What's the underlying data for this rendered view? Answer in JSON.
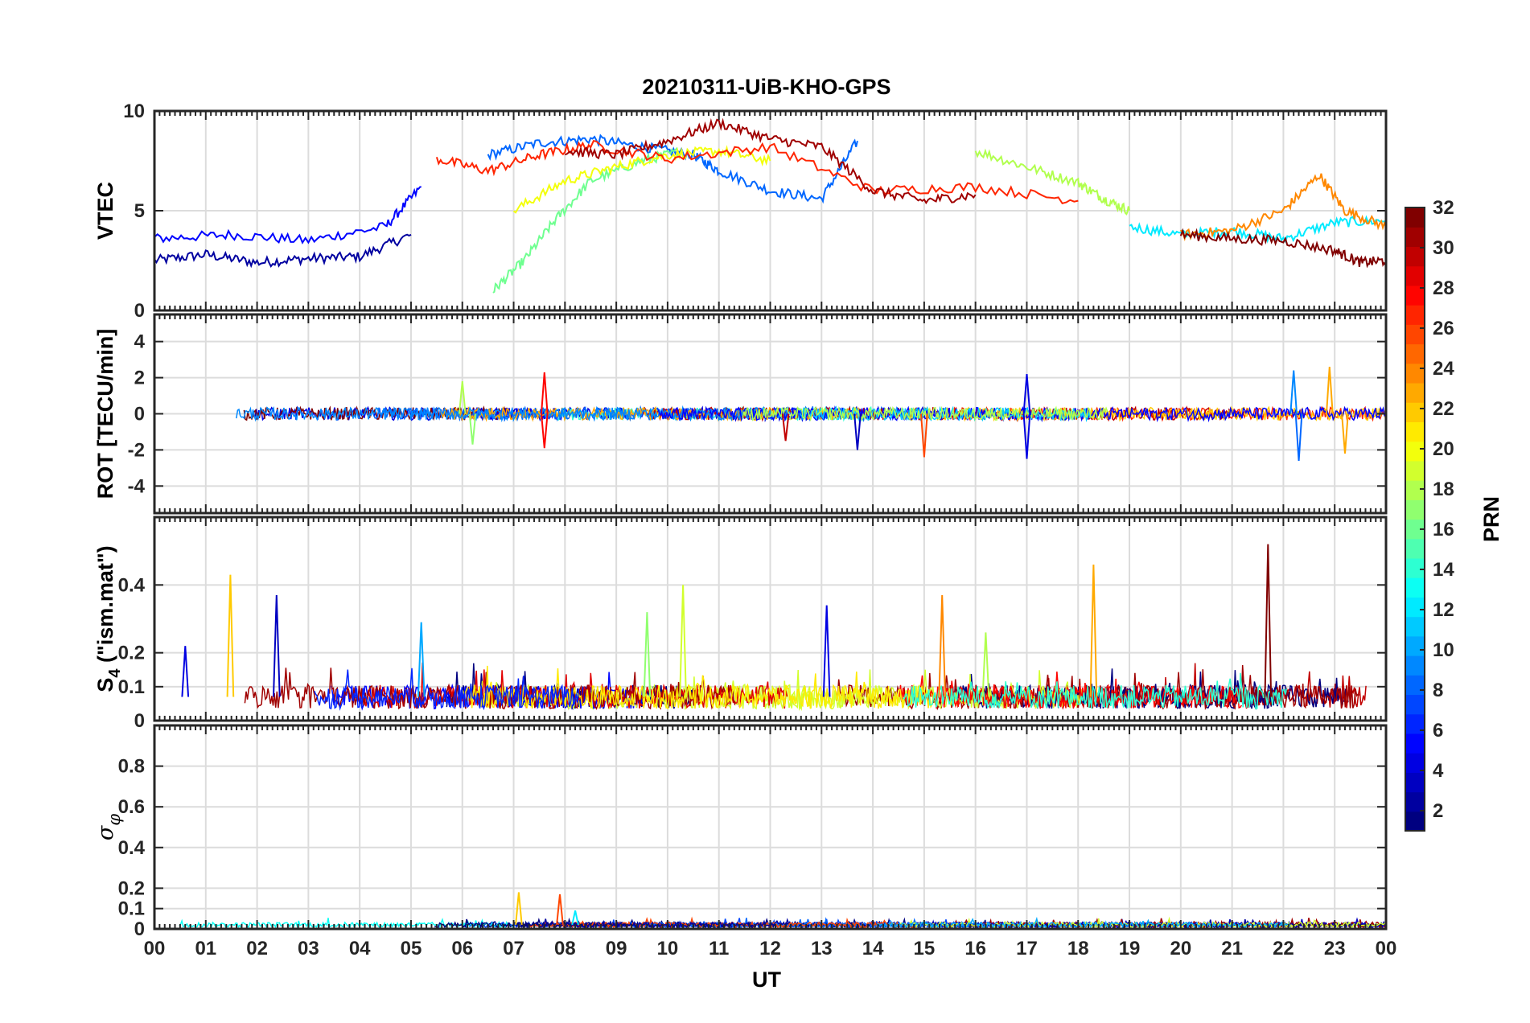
{
  "chart_data": {
    "type": "line",
    "title": "20210311-UiB-KHO-GPS",
    "xlabel": "UT",
    "x_ticks": [
      "00",
      "01",
      "02",
      "03",
      "04",
      "05",
      "06",
      "07",
      "08",
      "09",
      "10",
      "11",
      "12",
      "13",
      "14",
      "15",
      "16",
      "17",
      "18",
      "19",
      "20",
      "21",
      "22",
      "23",
      "00"
    ],
    "xlim": [
      0,
      24
    ],
    "grid": true,
    "panels": [
      {
        "ylabel": "VTEC",
        "ylim": [
          0,
          10
        ],
        "yticks": [
          "0",
          "5",
          "10"
        ],
        "ytick_values": [
          0,
          5,
          10
        ],
        "series_by_prn": [
          {
            "prn": 2,
            "x": [
              0.0,
              1.0,
              2.0,
              3.0,
              4.0,
              5.0
            ],
            "y": [
              2.5,
              2.8,
              2.4,
              2.6,
              2.7,
              3.8
            ]
          },
          {
            "prn": 5,
            "x": [
              0.0,
              1.5,
              3.0,
              4.5,
              5.2
            ],
            "y": [
              3.6,
              3.8,
              3.5,
              4.2,
              6.2
            ]
          },
          {
            "prn": 8,
            "x": [
              6.5,
              7.5,
              8.5,
              9.5,
              10.5,
              11.0,
              12.0,
              13.0,
              13.7
            ],
            "y": [
              7.8,
              8.4,
              8.6,
              8.2,
              7.8,
              7.0,
              6.0,
              5.6,
              8.5
            ]
          },
          {
            "prn": 12,
            "x": [
              19.0,
              20.0,
              21.0,
              22.0,
              23.0,
              24.0
            ],
            "y": [
              4.2,
              3.8,
              4.0,
              3.6,
              4.4,
              4.5
            ]
          },
          {
            "prn": 16,
            "x": [
              6.6,
              7.2,
              7.8,
              8.5,
              9.5,
              10.3
            ],
            "y": [
              1.0,
              2.5,
              4.5,
              6.5,
              7.5,
              8.0
            ]
          },
          {
            "prn": 18,
            "x": [
              16.0,
              17.0,
              18.0,
              18.5,
              19.0
            ],
            "y": [
              8.0,
              7.2,
              6.4,
              5.6,
              5.0
            ]
          },
          {
            "prn": 20,
            "x": [
              7.0,
              8.0,
              9.0,
              10.0,
              11.0,
              12.0
            ],
            "y": [
              5.0,
              6.5,
              7.2,
              7.8,
              8.0,
              7.5
            ]
          },
          {
            "prn": 24,
            "x": [
              20.0,
              21.0,
              22.0,
              22.7,
              23.2,
              24.0
            ],
            "y": [
              3.8,
              4.0,
              5.0,
              6.8,
              5.0,
              4.2
            ]
          },
          {
            "prn": 27,
            "x": [
              5.5,
              6.5,
              7.5,
              8.5,
              10.0,
              12.0,
              14.0,
              16.0,
              18.0
            ],
            "y": [
              7.6,
              7.0,
              7.8,
              8.3,
              7.6,
              8.2,
              6.0,
              6.2,
              5.5
            ]
          },
          {
            "prn": 31,
            "x": [
              8.0,
              9.0,
              10.0,
              11.0,
              12.0,
              13.0,
              14.0,
              15.0,
              16.0
            ],
            "y": [
              8.0,
              7.8,
              8.5,
              9.4,
              8.6,
              8.2,
              6.0,
              5.5,
              5.8
            ]
          },
          {
            "prn": 32,
            "x": [
              20.0,
              21.0,
              22.0,
              23.0,
              23.5,
              24.0
            ],
            "y": [
              3.8,
              3.6,
              3.5,
              3.0,
              2.4,
              2.5
            ]
          }
        ]
      },
      {
        "ylabel": "ROT [TECU/min]",
        "ylim": [
          -5.5,
          5.5
        ],
        "yticks": [
          "-4",
          "-2",
          "0",
          "2",
          "4"
        ],
        "ytick_values": [
          -4,
          -2,
          0,
          2,
          4
        ],
        "spikes": [
          {
            "prn": 18,
            "x": 6.0,
            "y": 1.8
          },
          {
            "prn": 17,
            "x": 6.2,
            "y": -1.7
          },
          {
            "prn": 28,
            "x": 7.6,
            "y": 2.3
          },
          {
            "prn": 28,
            "x": 7.6,
            "y": -1.9
          },
          {
            "prn": 30,
            "x": 12.3,
            "y": -1.5
          },
          {
            "prn": 3,
            "x": 13.7,
            "y": -2.0
          },
          {
            "prn": 26,
            "x": 15.0,
            "y": -2.4
          },
          {
            "prn": 4,
            "x": 17.0,
            "y": 2.2
          },
          {
            "prn": 4,
            "x": 17.0,
            "y": -2.5
          },
          {
            "prn": 9,
            "x": 22.2,
            "y": 2.4
          },
          {
            "prn": 8,
            "x": 22.3,
            "y": -2.6
          },
          {
            "prn": 23,
            "x": 22.9,
            "y": 2.6
          },
          {
            "prn": 23,
            "x": 23.2,
            "y": -2.2
          }
        ]
      },
      {
        "ylabel": "S4 (\"ism.mat\")",
        "ylabel_main": "S",
        "ylabel_sub": "4",
        "ylabel_rest": " (\"ism.mat\")",
        "ylim": [
          0,
          0.6
        ],
        "yticks": [
          "0",
          "0.1",
          "0.2",
          "0.4"
        ],
        "ytick_values": [
          0,
          0.1,
          0.2,
          0.4
        ],
        "spikes": [
          {
            "prn": 4,
            "x": 0.6,
            "y": 0.22
          },
          {
            "prn": 22,
            "x": 1.48,
            "y": 0.43
          },
          {
            "prn": 3,
            "x": 2.38,
            "y": 0.37
          },
          {
            "prn": 10,
            "x": 5.2,
            "y": 0.29
          },
          {
            "prn": 17,
            "x": 9.6,
            "y": 0.32
          },
          {
            "prn": 19,
            "x": 10.3,
            "y": 0.4
          },
          {
            "prn": 4,
            "x": 13.1,
            "y": 0.34
          },
          {
            "prn": 24,
            "x": 15.35,
            "y": 0.37
          },
          {
            "prn": 18,
            "x": 16.2,
            "y": 0.26
          },
          {
            "prn": 23,
            "x": 18.3,
            "y": 0.46
          },
          {
            "prn": 32,
            "x": 21.7,
            "y": 0.52
          }
        ]
      },
      {
        "ylabel": "σφ",
        "ylabel_main": "σ",
        "ylabel_sub": "φ",
        "ylim": [
          0,
          1.0
        ],
        "yticks": [
          "0",
          "0.1",
          "0.2",
          "0.4",
          "0.6",
          "0.8"
        ],
        "ytick_values": [
          0,
          0.1,
          0.2,
          0.4,
          0.6,
          0.8
        ],
        "spikes": [
          {
            "prn": 22,
            "x": 7.1,
            "y": 0.18
          },
          {
            "prn": 26,
            "x": 7.9,
            "y": 0.17
          },
          {
            "prn": 12,
            "x": 8.2,
            "y": 0.09
          }
        ]
      }
    ],
    "colorbar": {
      "label": "PRN",
      "range": [
        1,
        32
      ],
      "ticks": [
        "2",
        "4",
        "6",
        "8",
        "10",
        "12",
        "14",
        "16",
        "18",
        "20",
        "22",
        "24",
        "26",
        "28",
        "30",
        "32"
      ],
      "tick_values": [
        2,
        4,
        6,
        8,
        10,
        12,
        14,
        16,
        18,
        20,
        22,
        24,
        26,
        28,
        30,
        32
      ],
      "colormap": "jet"
    }
  }
}
